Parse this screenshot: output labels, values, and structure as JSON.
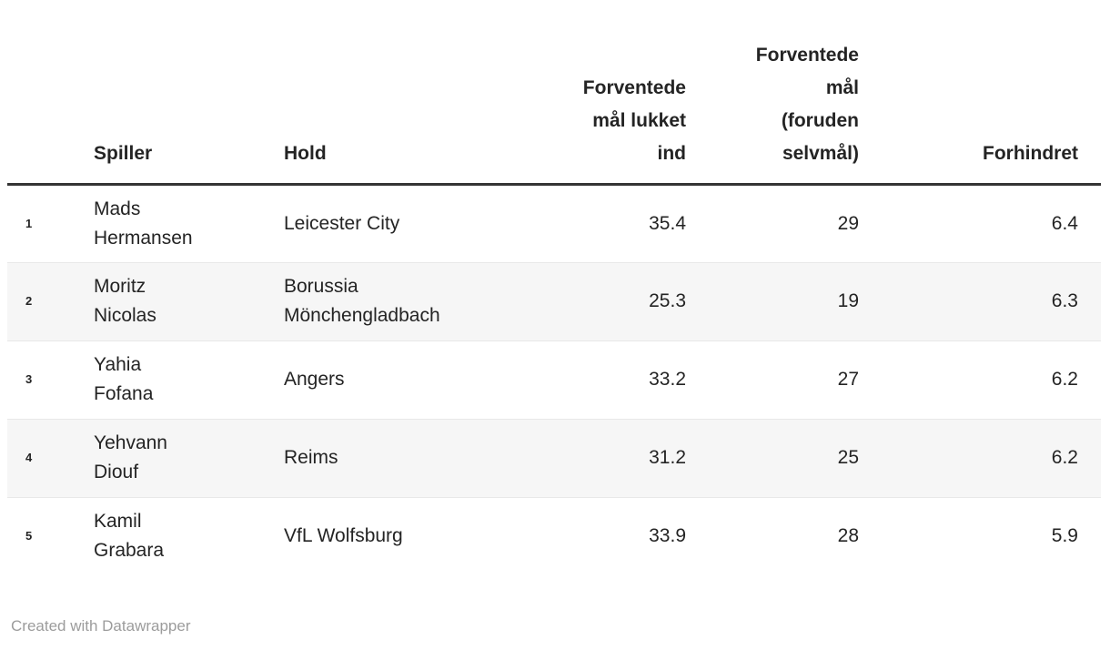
{
  "table": {
    "columns": [
      {
        "id": "rank",
        "label": "",
        "align": "left"
      },
      {
        "id": "player",
        "label": "Spiller",
        "align": "left"
      },
      {
        "id": "team",
        "label": "Hold",
        "align": "left"
      },
      {
        "id": "xg_against",
        "label": "Forventede\nmål lukket\nind",
        "align": "right"
      },
      {
        "id": "goals_against",
        "label": "Forventede\nmål\n(foruden\nselvmål)",
        "align": "right"
      },
      {
        "id": "prevented",
        "label": "Forhindret",
        "align": "right"
      }
    ],
    "rows": [
      {
        "rank": "1",
        "player": "Mads Hermansen",
        "team": "Leicester City",
        "xg_against": "35.4",
        "goals_against": "29",
        "prevented": "6.4"
      },
      {
        "rank": "2",
        "player": "Moritz Nicolas",
        "team": "Borussia Mönchengladbach",
        "xg_against": "25.3",
        "goals_against": "19",
        "prevented": "6.3"
      },
      {
        "rank": "3",
        "player": "Yahia Fofana",
        "team": "Angers",
        "xg_against": "33.2",
        "goals_against": "27",
        "prevented": "6.2"
      },
      {
        "rank": "4",
        "player": "Yehvann Diouf",
        "team": "Reims",
        "xg_against": "31.2",
        "goals_against": "25",
        "prevented": "6.2"
      },
      {
        "rank": "5",
        "player": "Kamil Grabara",
        "team": "VfL Wolfsburg",
        "xg_against": "33.9",
        "goals_against": "28",
        "prevented": "5.9"
      }
    ]
  },
  "footer": {
    "attribution": "Created with Datawrapper"
  },
  "colors": {
    "text": "#242424",
    "header_rule": "#343434",
    "row_divider": "#e8e8e8",
    "stripe": "#f6f6f6",
    "footer_text": "#9c9c9c"
  }
}
